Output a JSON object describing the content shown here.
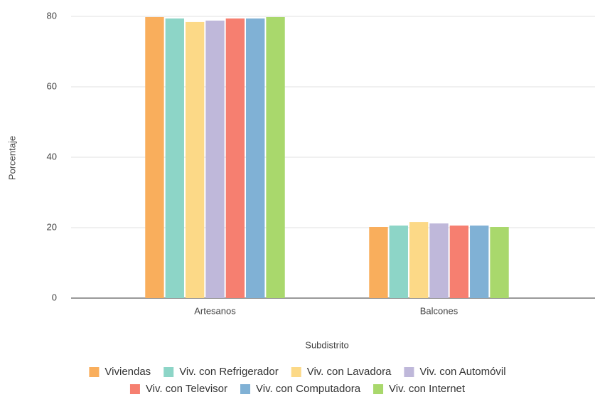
{
  "chart_data": {
    "type": "bar",
    "x_label": "Subdistrito",
    "y_label": "Porcentaje",
    "categories": [
      "Artesanos",
      "Balcones"
    ],
    "series": [
      {
        "name": "Viviendas",
        "color": "#f9ae5c",
        "values": [
          79.8,
          20.2
        ]
      },
      {
        "name": "Viv. con Refrigerador",
        "color": "#8dd5c7",
        "values": [
          79.4,
          20.6
        ]
      },
      {
        "name": "Viv. con Lavadora",
        "color": "#fcd987",
        "values": [
          78.4,
          21.6
        ]
      },
      {
        "name": "Viv. con Automóvil",
        "color": "#bfb8da",
        "values": [
          78.8,
          21.2
        ]
      },
      {
        "name": "Viv. con Televisor",
        "color": "#f67f70",
        "values": [
          79.4,
          20.6
        ]
      },
      {
        "name": "Viv. con Computadora",
        "color": "#80b1d5",
        "values": [
          79.4,
          20.6
        ]
      },
      {
        "name": "Viv. con Internet",
        "color": "#a9d86c",
        "values": [
          79.8,
          20.2
        ]
      }
    ],
    "ylim": [
      0,
      80
    ],
    "yticks": [
      0,
      20,
      40,
      60,
      80
    ],
    "grid": true,
    "legend": "bottom"
  }
}
